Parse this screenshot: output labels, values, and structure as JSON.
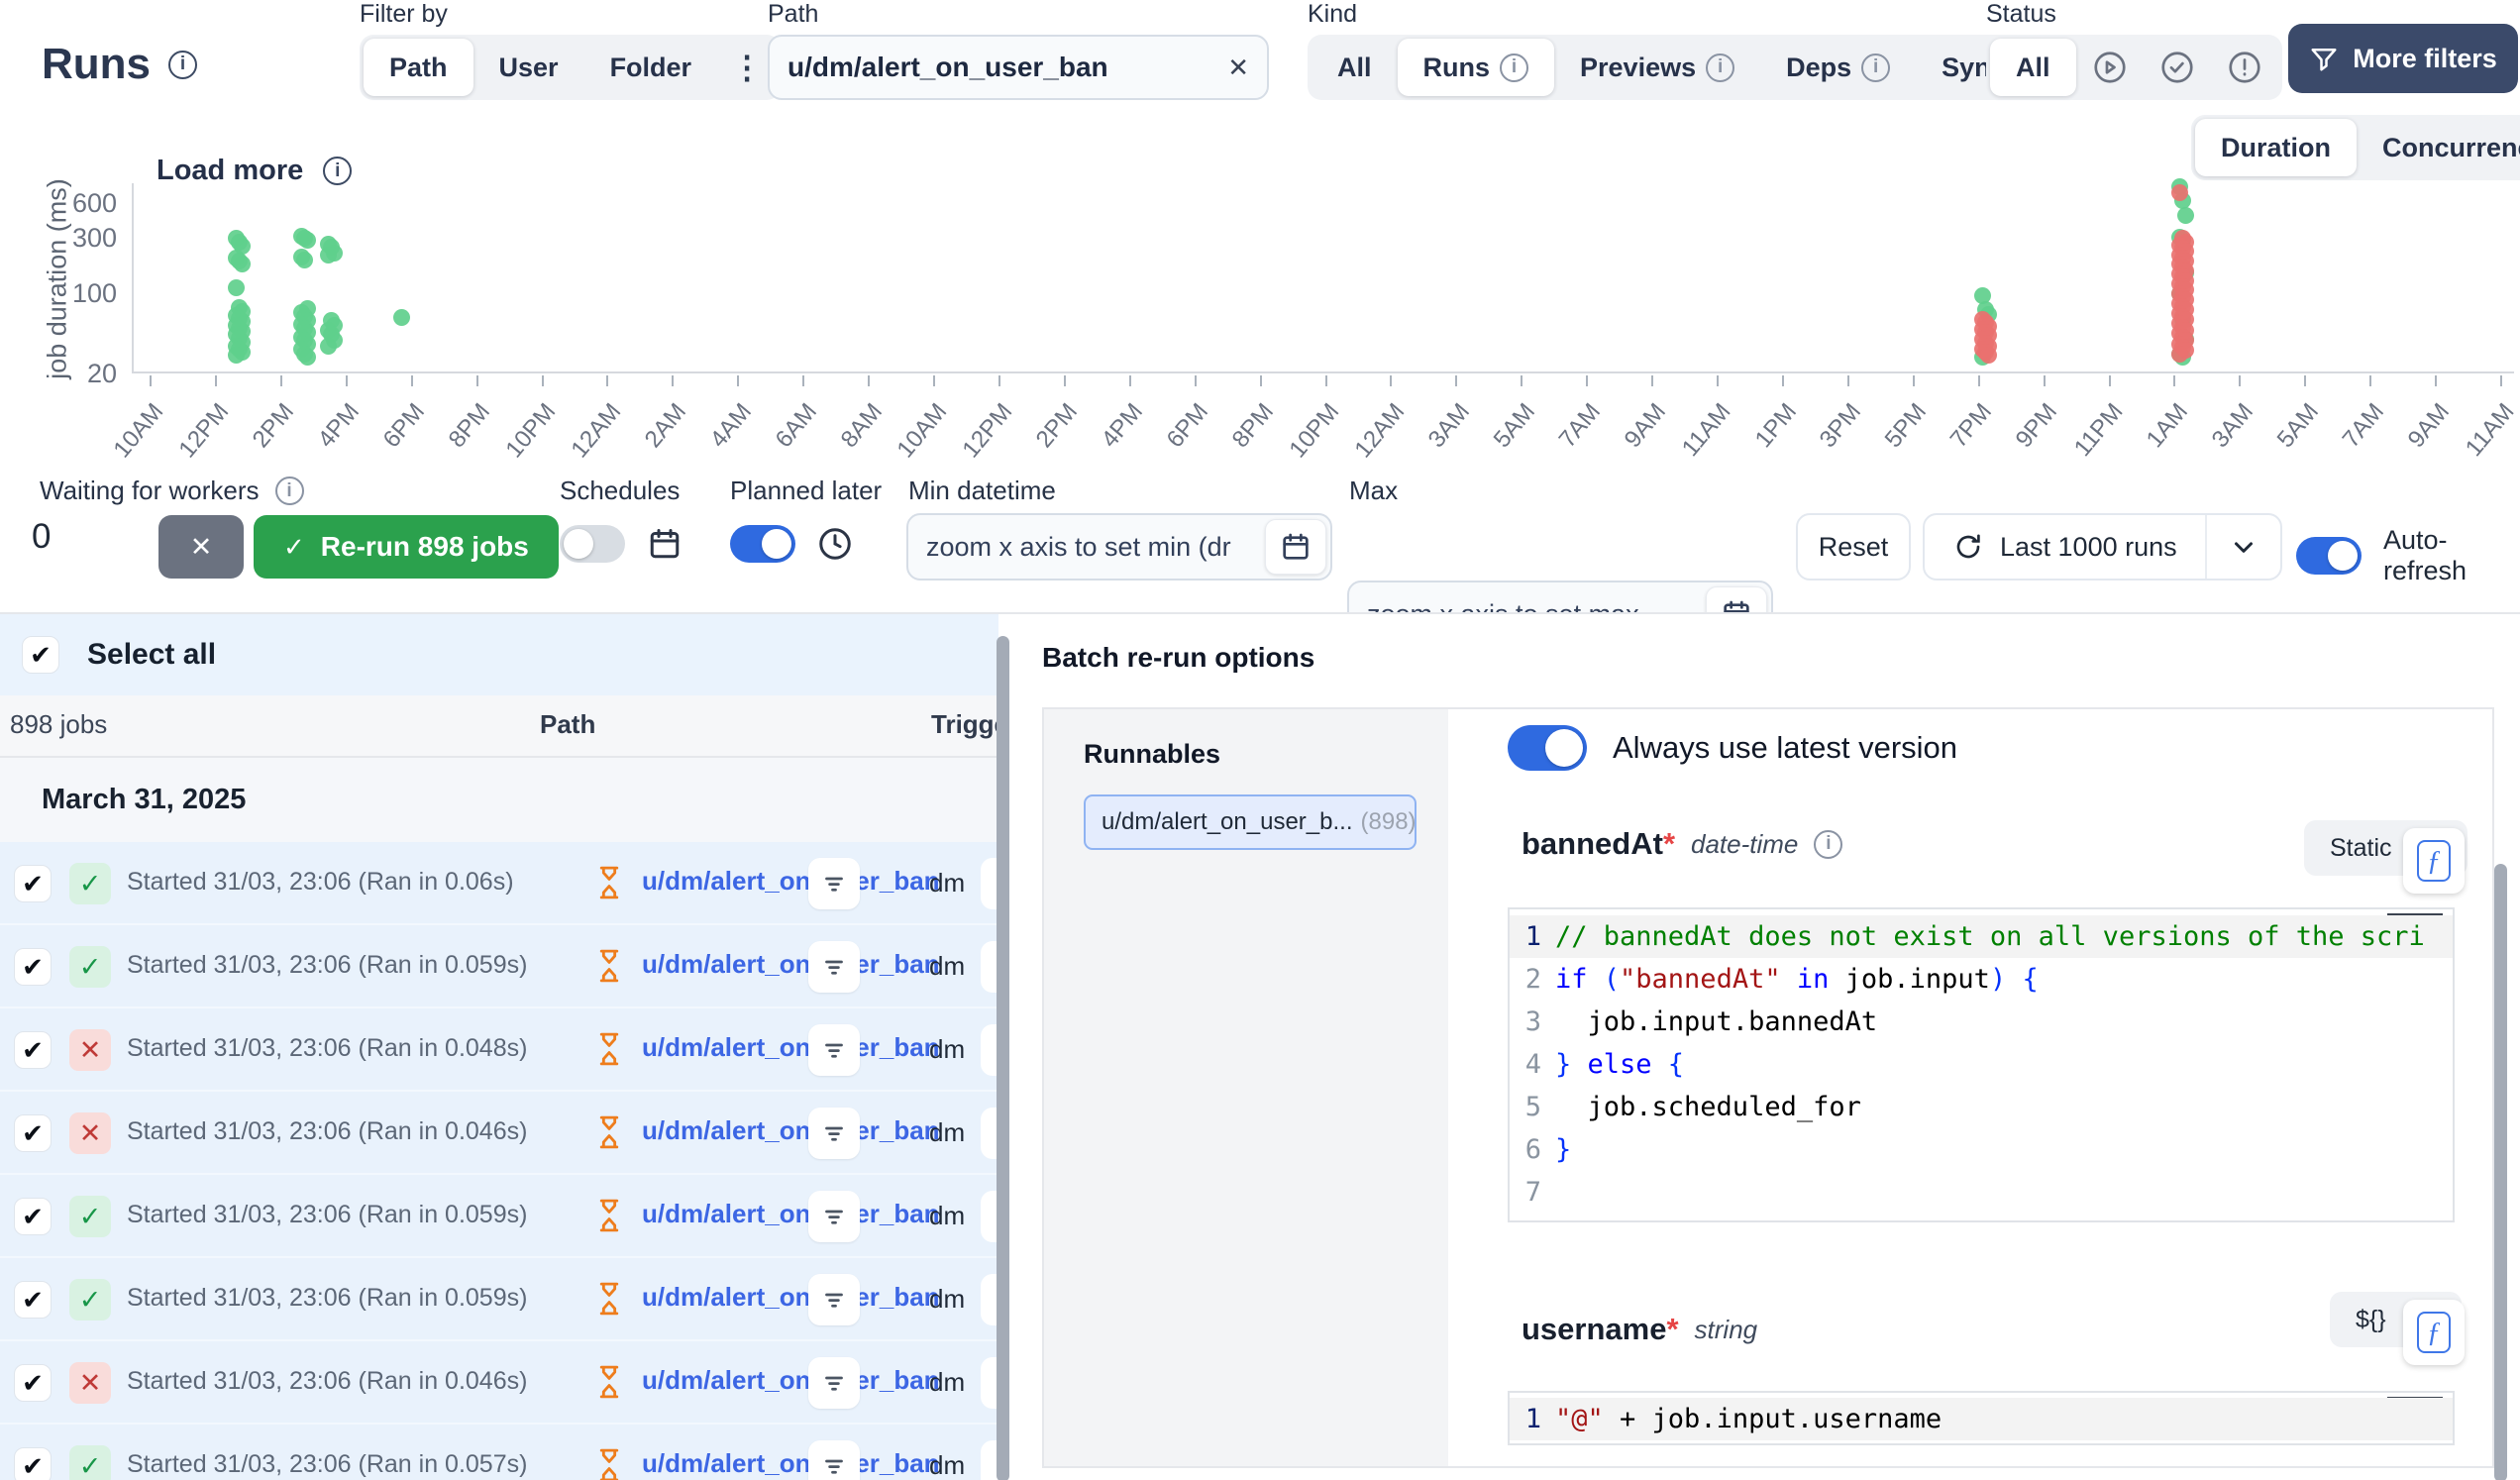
{
  "header": {
    "title": "Runs",
    "filter_by": {
      "label": "Filter by",
      "options": [
        "Path",
        "User",
        "Folder"
      ],
      "selected": "Path"
    },
    "path_filter": {
      "label": "Path",
      "value": "u/dm/alert_on_user_ban"
    },
    "kind": {
      "label": "Kind",
      "options": [
        "All",
        "Runs",
        "Previews",
        "Deps",
        "Sync"
      ],
      "selected": "Runs"
    },
    "status": {
      "label": "Status",
      "all_label": "All",
      "selected": "All",
      "icon_options": [
        "running",
        "success",
        "failure"
      ]
    },
    "more_filters_label": "More filters"
  },
  "chart_data": {
    "type": "scatter",
    "title_button": "Load more",
    "ylabel": "job duration (ms)",
    "yticks": [
      20,
      100,
      300,
      600
    ],
    "ylim": [
      20,
      900
    ],
    "yscale": "log",
    "legend": "none",
    "view_toggle": {
      "options": [
        "Duration",
        "Concurrency"
      ],
      "selected": "Duration"
    },
    "x_labels": [
      "10AM",
      "12PM",
      "2PM",
      "4PM",
      "6PM",
      "8PM",
      "10PM",
      "12AM",
      "2AM",
      "4AM",
      "6AM",
      "8AM",
      "10AM",
      "12PM",
      "2PM",
      "4PM",
      "6PM",
      "8PM",
      "10PM",
      "12AM",
      "3AM",
      "5AM",
      "7AM",
      "9AM",
      "11AM",
      "1PM",
      "3PM",
      "5PM",
      "7PM",
      "9PM",
      "11PM",
      "1AM",
      "3AM",
      "5AM",
      "7AM",
      "9AM",
      "11AM"
    ],
    "series": [
      {
        "name": "success",
        "color": "#5fcf8c",
        "clusters": [
          {
            "x": 0.044,
            "values": [
              300,
              278,
              258,
              205,
              192,
              180,
              112,
              76,
              70,
              65,
              61,
              57,
              53,
              50,
              47,
              44,
              41,
              38,
              35,
              33,
              31,
              29
            ]
          },
          {
            "x": 0.0715,
            "values": [
              312,
              300,
              288,
              206,
              194,
              74,
              68,
              63,
              58,
              54,
              50,
              46,
              42,
              39,
              36,
              33,
              30,
              28
            ]
          },
          {
            "x": 0.0827,
            "values": [
              266,
              254,
              226,
              214,
              58,
              53,
              48,
              44,
              39,
              35
            ]
          },
          {
            "x": 0.1135,
            "values": [
              62
            ]
          },
          {
            "x": 0.777,
            "values": [
              95,
              72,
              66,
              28
            ]
          },
          {
            "x": 0.86,
            "values": [
              850,
              640,
              480,
              310,
              290,
              150,
              100,
              60,
              40,
              30,
              28
            ]
          }
        ]
      },
      {
        "name": "failure",
        "color": "#e9716f",
        "clusters": [
          {
            "x": 0.777,
            "values": [
              60,
              56,
              52,
              49,
              46,
              43,
              40,
              37,
              35,
              33,
              31,
              29
            ]
          },
          {
            "x": 0.86,
            "values": [
              760,
              300,
              282,
              264,
              248,
              232,
              218,
              205,
              192,
              180,
              169,
              158,
              148,
              139,
              130,
              122,
              114,
              107,
              100,
              94,
              88,
              82,
              77,
              72,
              67,
              63,
              59,
              55,
              51,
              48,
              45,
              42,
              39,
              36,
              34,
              32,
              30
            ]
          }
        ]
      }
    ]
  },
  "toolbar": {
    "waiting": {
      "label": "Waiting for workers",
      "count": "0"
    },
    "rerun_label": "Re-run 898 jobs",
    "schedules_label": "Schedules",
    "planned_later_label": "Planned later",
    "min_datetime": {
      "label": "Min datetime",
      "value": "zoom x axis to set min (dr"
    },
    "max_datetime": {
      "label": "Max",
      "value": "zoom x axis to set max"
    },
    "reset_label": "Reset",
    "last_runs_label": "Last 1000 runs",
    "auto_refresh_label": "Auto-refresh"
  },
  "runs_panel": {
    "select_all_label": "Select all",
    "jobs_count": "898 jobs",
    "col_path": "Path",
    "col_triggered": "Triggered by",
    "date_group": "March 31, 2025",
    "rows": [
      {
        "status": "success",
        "text": "Started 31/03, 23:06 (Ran in 0.06s)",
        "path": "u/dm/alert_on_user_ban",
        "triggered_by": "dm"
      },
      {
        "status": "success",
        "text": "Started 31/03, 23:06 (Ran in 0.059s)",
        "path": "u/dm/alert_on_user_ban",
        "triggered_by": "dm"
      },
      {
        "status": "failure",
        "text": "Started 31/03, 23:06 (Ran in 0.048s)",
        "path": "u/dm/alert_on_user_ban",
        "triggered_by": "dm"
      },
      {
        "status": "failure",
        "text": "Started 31/03, 23:06 (Ran in 0.046s)",
        "path": "u/dm/alert_on_user_ban",
        "triggered_by": "dm"
      },
      {
        "status": "success",
        "text": "Started 31/03, 23:06 (Ran in 0.059s)",
        "path": "u/dm/alert_on_user_ban",
        "triggered_by": "dm"
      },
      {
        "status": "success",
        "text": "Started 31/03, 23:06 (Ran in 0.059s)",
        "path": "u/dm/alert_on_user_ban",
        "triggered_by": "dm"
      },
      {
        "status": "failure",
        "text": "Started 31/03, 23:06 (Ran in 0.046s)",
        "path": "u/dm/alert_on_user_ban",
        "triggered_by": "dm"
      },
      {
        "status": "success",
        "text": "Started 31/03, 23:06 (Ran in 0.057s)",
        "path": "u/dm/alert_on_user_ban",
        "triggered_by": "dm"
      }
    ]
  },
  "batch_panel": {
    "title": "Batch re-run options",
    "runnables_label": "Runnables",
    "chip": {
      "name": "u/dm/alert_on_user_b...",
      "count": "(898)"
    },
    "latest_version_label": "Always use latest version",
    "fields": [
      {
        "name": "bannedAt",
        "required": "*",
        "type": "date-time",
        "mode_label": "Static",
        "active_line": 1,
        "code": [
          [
            {
              "t": "cmt",
              "v": "// bannedAt does not exist on all versions of the scri"
            }
          ],
          [
            {
              "t": "kw",
              "v": "if"
            },
            {
              "t": "pn",
              "v": " ("
            },
            {
              "t": "str",
              "v": "\"bannedAt\""
            },
            {
              "t": "pl",
              "v": " "
            },
            {
              "t": "kw",
              "v": "in"
            },
            {
              "t": "pl",
              "v": " job.input"
            },
            {
              "t": "pn",
              "v": ") {"
            }
          ],
          [
            {
              "t": "pl",
              "v": "  job.input.bannedAt"
            }
          ],
          [
            {
              "t": "pn",
              "v": "} "
            },
            {
              "t": "kw",
              "v": "else"
            },
            {
              "t": "pn",
              "v": " {"
            }
          ],
          [
            {
              "t": "pl",
              "v": "  job.scheduled_for"
            }
          ],
          [
            {
              "t": "pn",
              "v": "}"
            }
          ],
          []
        ]
      },
      {
        "name": "username",
        "required": "*",
        "type": "string",
        "mode_label": "${}",
        "active_line": 1,
        "code": [
          [
            {
              "t": "str",
              "v": "\"@\""
            },
            {
              "t": "pl",
              "v": " + job.input.username"
            }
          ]
        ]
      }
    ]
  }
}
